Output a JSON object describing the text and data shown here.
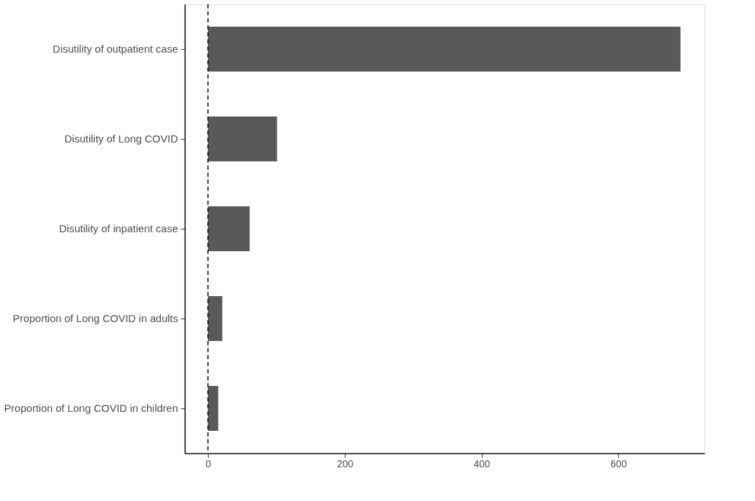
{
  "chart_data": {
    "type": "bar",
    "orientation": "horizontal",
    "categories": [
      "Disutility of outpatient case",
      "Disutility of Long COVID",
      "Disutility of inpatient case",
      "Proportion of Long COVID in adults",
      "Proportion of Long COVID in children"
    ],
    "values": [
      691,
      101,
      61,
      21,
      15
    ],
    "color": "#595959",
    "xlim": [
      -34,
      726
    ],
    "xticks": [
      0,
      200,
      400,
      600
    ],
    "grid": false,
    "ref_lines": [
      {
        "axis": "x",
        "value": 0,
        "line_style": "dashed",
        "color": "#000000"
      }
    ]
  }
}
